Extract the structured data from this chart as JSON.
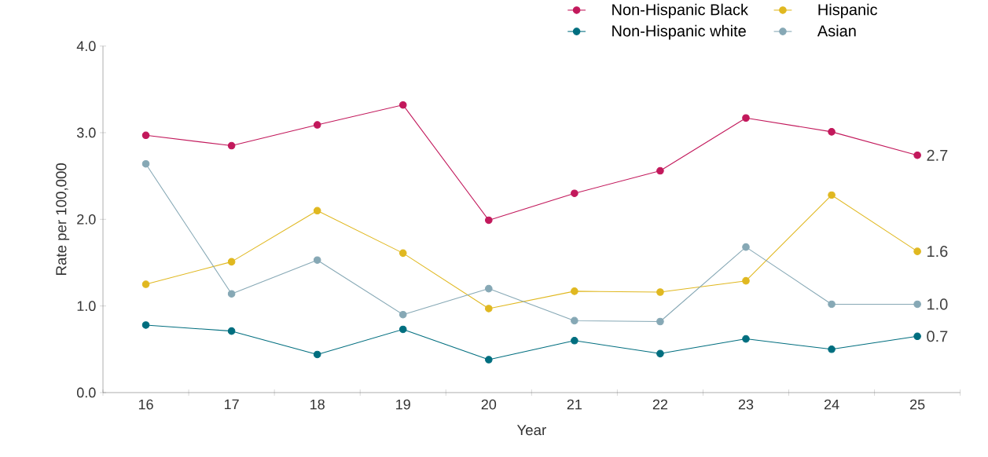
{
  "chart_data": {
    "type": "line",
    "xlabel": "Year",
    "ylabel": "Rate per 100,000",
    "categories": [
      "16",
      "17",
      "18",
      "19",
      "20",
      "21",
      "22",
      "23",
      "24",
      "25"
    ],
    "series": [
      {
        "name": "Non-Hispanic Black",
        "color": "#c2185b",
        "values": [
          2.97,
          2.85,
          3.09,
          3.32,
          1.99,
          2.3,
          2.56,
          3.17,
          3.01,
          2.74
        ],
        "value_labels": [
          null,
          null,
          null,
          null,
          null,
          null,
          null,
          null,
          null,
          "2.7"
        ]
      },
      {
        "name": "Hispanic",
        "color": "#e0b820",
        "values": [
          1.25,
          1.51,
          2.1,
          1.61,
          0.97,
          1.17,
          1.16,
          1.29,
          2.28,
          1.63
        ],
        "value_labels": [
          null,
          null,
          null,
          null,
          null,
          null,
          null,
          null,
          null,
          "1.6"
        ]
      },
      {
        "name": "Non-Hispanic white",
        "color": "#006e7f",
        "values": [
          0.78,
          0.71,
          0.44,
          0.73,
          0.38,
          0.6,
          0.45,
          0.62,
          0.5,
          0.65
        ],
        "value_labels": [
          null,
          null,
          null,
          null,
          null,
          null,
          null,
          null,
          null,
          "0.7"
        ]
      },
      {
        "name": "Asian",
        "color": "#86a8b5",
        "values": [
          2.64,
          1.14,
          1.53,
          0.9,
          1.2,
          0.83,
          0.82,
          1.68,
          1.02,
          1.02
        ],
        "value_labels": [
          null,
          null,
          null,
          null,
          null,
          null,
          null,
          null,
          null,
          "1.0"
        ]
      }
    ],
    "ylim": [
      0,
      4
    ],
    "yticks": [
      {
        "value": 0,
        "label": "0.0"
      },
      {
        "value": 1,
        "label": "1.0"
      },
      {
        "value": 2,
        "label": "2.0"
      },
      {
        "value": 3,
        "label": "3.0"
      },
      {
        "value": 4,
        "label": "4.0"
      }
    ],
    "legend": "top",
    "marker": "circle",
    "line_style": "solid"
  }
}
